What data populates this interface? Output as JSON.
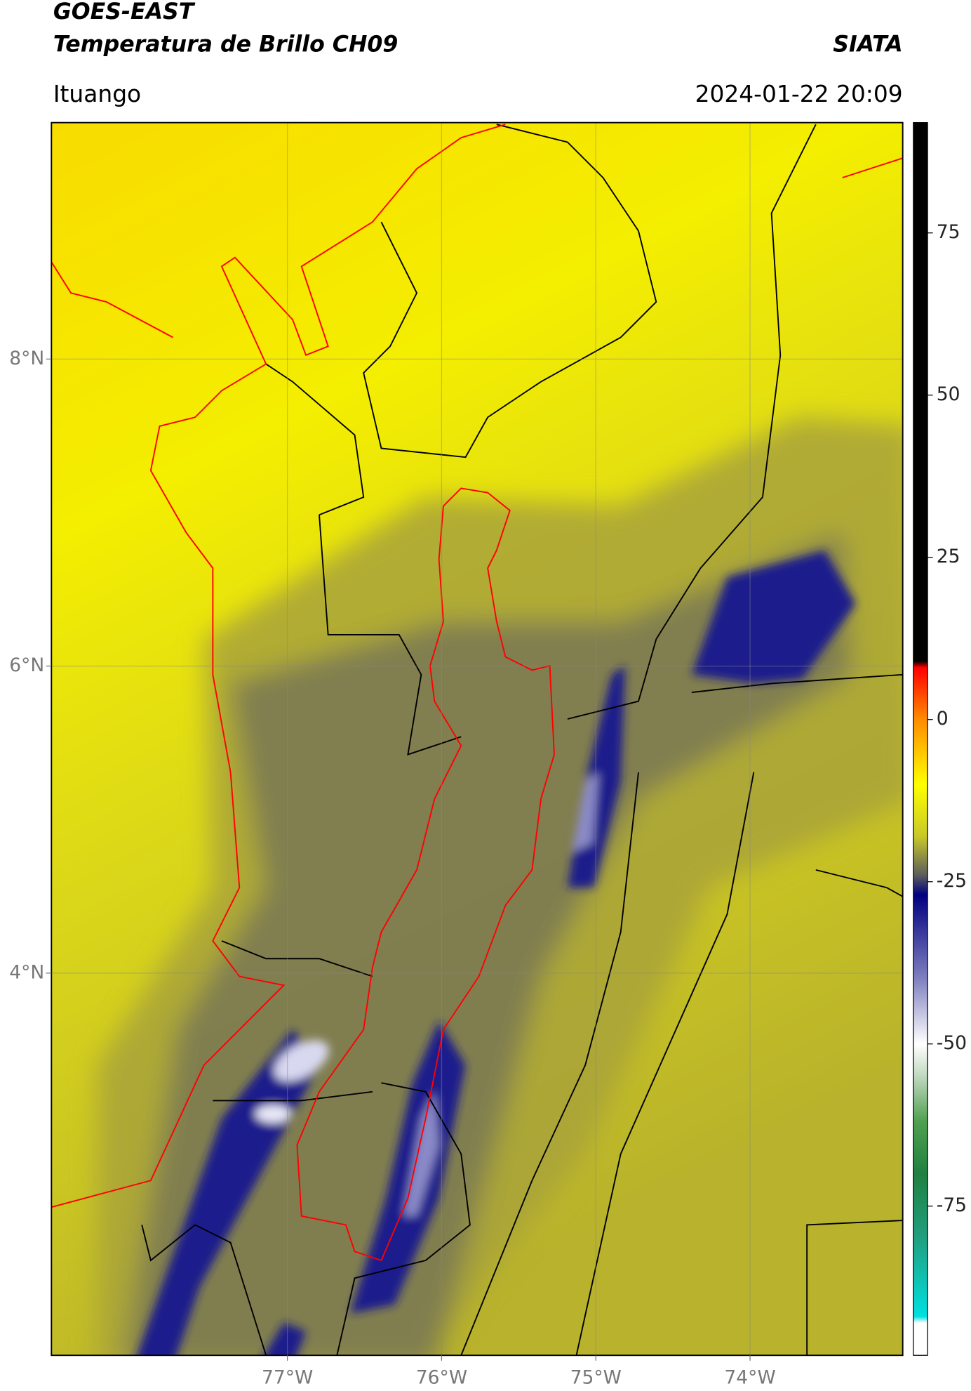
{
  "chart_data": {
    "type": "map",
    "title": "GOES-EAST",
    "subtitle": "Temperatura de Brillo CH09",
    "source": "SIATA",
    "location": "Ituango",
    "datetime": "2024-01-22 20:09",
    "xlim": [
      -78.53,
      -73.01
    ],
    "ylim": [
      1.51,
      9.54
    ],
    "xticks": [
      {
        "value": -77,
        "label": "77°W"
      },
      {
        "value": -76,
        "label": "76°W"
      },
      {
        "value": -75,
        "label": "75°W"
      },
      {
        "value": -74,
        "label": "74°W"
      }
    ],
    "yticks": [
      {
        "value": 8,
        "label": "8°N"
      },
      {
        "value": 6,
        "label": "6°N"
      },
      {
        "value": 4,
        "label": "4°N"
      }
    ],
    "grid": true,
    "colorbar": {
      "clim": [
        -98,
        92
      ],
      "ticks": [
        75,
        50,
        25,
        0,
        -25,
        -50,
        -75
      ],
      "colormap": [
        {
          "value": 92,
          "color": "#000000"
        },
        {
          "value": 9,
          "color": "#000000"
        },
        {
          "value": 8,
          "color": "#ff0000"
        },
        {
          "value": 0,
          "color": "#ff8c00"
        },
        {
          "value": -10,
          "color": "#ffff00"
        },
        {
          "value": -18,
          "color": "#c8c828"
        },
        {
          "value": -24,
          "color": "#5c5c5c"
        },
        {
          "value": -27,
          "color": "#000080"
        },
        {
          "value": -40,
          "color": "#8080c0"
        },
        {
          "value": -50,
          "color": "#ffffff"
        },
        {
          "value": -55,
          "color": "#c0d8c0"
        },
        {
          "value": -62,
          "color": "#50a050"
        },
        {
          "value": -70,
          "color": "#208040"
        },
        {
          "value": -80,
          "color": "#20a080"
        },
        {
          "value": -92,
          "color": "#00e0e0"
        },
        {
          "value": -93,
          "color": "#ffffff"
        },
        {
          "value": -98,
          "color": "#ffffff"
        }
      ]
    }
  }
}
